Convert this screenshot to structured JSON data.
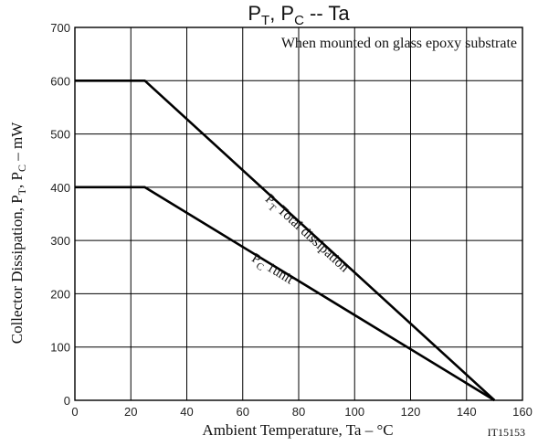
{
  "chart_data": {
    "type": "line",
    "title": {
      "p": "P",
      "sub_t": "T",
      "sep": ", P",
      "sub_c": "C",
      "tail": " -- Ta"
    },
    "annotation": "When mounted on glass epoxy substrate",
    "xlabel": "Ambient Temperature, Ta  –  °C",
    "ylabel": {
      "main": "Collector Dissipation, P",
      "sub_t": "T",
      "mid": ", P",
      "sub_c": "C",
      "tail": "  –  mW"
    },
    "xlim": [
      0,
      160
    ],
    "ylim": [
      0,
      700
    ],
    "xticks": [
      0,
      20,
      40,
      60,
      80,
      100,
      120,
      140,
      160
    ],
    "yticks": [
      0,
      100,
      200,
      300,
      400,
      500,
      600,
      700
    ],
    "grid": true,
    "series": [
      {
        "label_p": "P",
        "label_sub": "T",
        "label_text": " Total dissipation",
        "x": [
          0,
          25,
          150
        ],
        "y": [
          600,
          600,
          0
        ]
      },
      {
        "label_p": "P",
        "label_sub": "C",
        "label_text": " 1unit",
        "x": [
          0,
          25,
          150
        ],
        "y": [
          400,
          400,
          0
        ]
      }
    ],
    "figure_code": "IT15153"
  }
}
